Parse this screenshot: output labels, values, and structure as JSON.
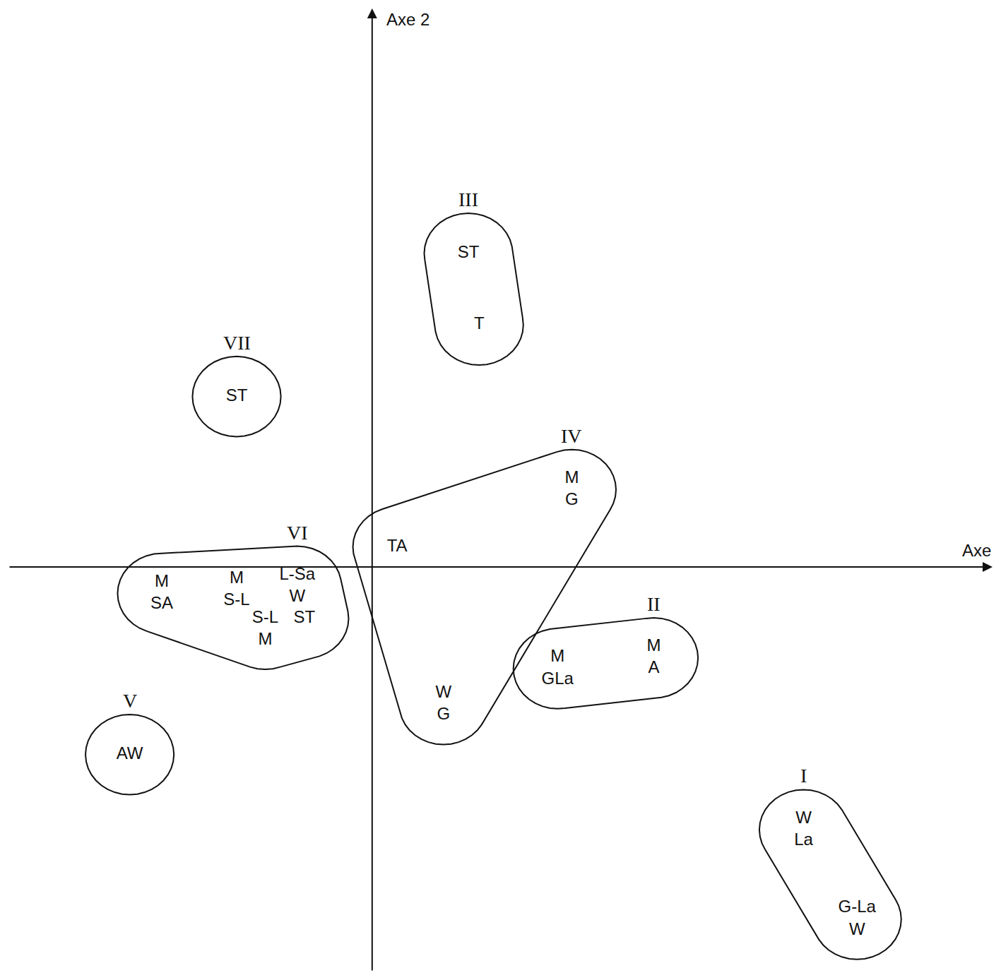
{
  "chart_data": {
    "type": "scatter",
    "x_label": "Axe",
    "y_label": "Axe 2",
    "xlim": [
      -5.1,
      8.7
    ],
    "ylim": [
      -5.65,
      7.8
    ],
    "xticks": [],
    "yticks": [],
    "tick_labels": false,
    "grid": false,
    "clusters": [
      {
        "label": "I",
        "points": [
          {
            "x": 6.05,
            "y": -3.67,
            "text": "W\nLa"
          },
          {
            "x": 6.8,
            "y": -4.92,
            "text": "G-La\nW"
          }
        ]
      },
      {
        "label": "II",
        "points": [
          {
            "x": 2.6,
            "y": -1.42,
            "text": "M\nGLa"
          },
          {
            "x": 3.95,
            "y": -1.27,
            "text": "M\nA"
          }
        ]
      },
      {
        "label": "III",
        "points": [
          {
            "x": 1.35,
            "y": 4.38,
            "text": "ST"
          },
          {
            "x": 1.5,
            "y": 3.38,
            "text": "T"
          }
        ]
      },
      {
        "label": "IV",
        "points": [
          {
            "x": 2.8,
            "y": 1.08,
            "text": "M\nG"
          },
          {
            "x": 0.35,
            "y": 0.28,
            "text": "TA"
          },
          {
            "x": 1.0,
            "y": -1.92,
            "text": "W\nG"
          }
        ]
      },
      {
        "label": "V",
        "points": [
          {
            "x": -3.4,
            "y": -2.62,
            "text": "AW"
          }
        ]
      },
      {
        "label": "VI",
        "points": [
          {
            "x": -2.95,
            "y": -0.37,
            "text": "M\nSA"
          },
          {
            "x": -1.9,
            "y": -0.32,
            "text": "M\nS-L"
          },
          {
            "x": -1.05,
            "y": -0.27,
            "text": "L-Sa\nW"
          },
          {
            "x": -1.5,
            "y": -0.87,
            "text": "S-L\nM"
          },
          {
            "x": -0.95,
            "y": -0.72,
            "text": "ST"
          }
        ]
      },
      {
        "label": "VII",
        "points": [
          {
            "x": -1.9,
            "y": 2.38,
            "text": "ST"
          }
        ]
      }
    ]
  }
}
